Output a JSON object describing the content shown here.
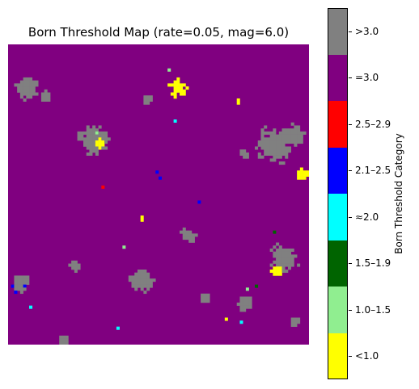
{
  "chart_data": {
    "type": "heatmap",
    "title": "Born Threshold Map (rate=0.05, mag=6.0)",
    "grid_size": [
      100,
      100
    ],
    "colorbar": {
      "label": "Born Threshold Category",
      "categories": [
        {
          "label": "<1.0",
          "color": "#ffff00"
        },
        {
          "label": "1.0–1.5",
          "color": "#90ee90"
        },
        {
          "label": "1.5–1.9",
          "color": "#006400"
        },
        {
          "label": "≈2.0",
          "color": "#00ffff"
        },
        {
          "label": "2.1–2.5",
          "color": "#0000ff"
        },
        {
          "label": "2.5–2.9",
          "color": "#ff0000"
        },
        {
          "label": "=3.0",
          "color": "#800080"
        },
        {
          "label": ">3.0",
          "color": "#808080"
        }
      ]
    },
    "background_category": "=3.0",
    "clusters": [
      {
        "category": ">3.0",
        "cx": 6,
        "cy": 14,
        "r": 4
      },
      {
        "category": ">3.0",
        "cx": 12,
        "cy": 17,
        "r": 2
      },
      {
        "category": ">3.0",
        "cx": 28,
        "cy": 31,
        "r": 5
      },
      {
        "category": ">3.0",
        "cx": 46,
        "cy": 18,
        "r": 2
      },
      {
        "category": ">3.0",
        "cx": 88,
        "cy": 33,
        "r": 6
      },
      {
        "category": ">3.0",
        "cx": 94,
        "cy": 30,
        "r": 4
      },
      {
        "category": ">3.0",
        "cx": 78,
        "cy": 36,
        "r": 2
      },
      {
        "category": ">3.0",
        "cx": 91,
        "cy": 71,
        "r": 5
      },
      {
        "category": ">3.0",
        "cx": 44,
        "cy": 78,
        "r": 4
      },
      {
        "category": ">3.0",
        "cx": 21,
        "cy": 73,
        "r": 2
      },
      {
        "category": ">3.0",
        "cx": 78,
        "cy": 86,
        "r": 3
      },
      {
        "category": ">3.0",
        "cx": 59,
        "cy": 63,
        "r": 3
      },
      {
        "category": ">3.0",
        "cx": 4,
        "cy": 79,
        "r": 3
      },
      {
        "category": ">3.0",
        "cx": 65,
        "cy": 84,
        "r": 2
      },
      {
        "category": ">3.0",
        "cx": 18,
        "cy": 98,
        "r": 2
      },
      {
        "category": ">3.0",
        "cx": 95,
        "cy": 92,
        "r": 2
      },
      {
        "category": "<1.0",
        "cx": 56,
        "cy": 14,
        "r": 3
      },
      {
        "category": "<1.0",
        "cx": 30,
        "cy": 33,
        "r": 2
      },
      {
        "category": "<1.0",
        "cx": 97,
        "cy": 43,
        "r": 2
      },
      {
        "category": "<1.0",
        "cx": 89,
        "cy": 75,
        "r": 2
      },
      {
        "category": "<1.0",
        "cx": 44,
        "cy": 57,
        "r": 1
      },
      {
        "category": "<1.0",
        "cx": 76,
        "cy": 18,
        "r": 1
      },
      {
        "category": "<1.0",
        "cx": 72,
        "cy": 91,
        "r": 1
      }
    ],
    "points": [
      {
        "category": "1.0–1.5",
        "x": 53,
        "y": 8
      },
      {
        "category": "1.0–1.5",
        "x": 29,
        "y": 29
      },
      {
        "category": "1.0–1.5",
        "x": 38,
        "y": 67
      },
      {
        "category": "1.0–1.5",
        "x": 79,
        "y": 81
      },
      {
        "category": "1.5–1.9",
        "x": 88,
        "y": 62
      },
      {
        "category": "1.5–1.9",
        "x": 82,
        "y": 80
      },
      {
        "category": "≈2.0",
        "x": 55,
        "y": 25
      },
      {
        "category": "≈2.0",
        "x": 7,
        "y": 87
      },
      {
        "category": "≈2.0",
        "x": 77,
        "y": 92
      },
      {
        "category": "≈2.0",
        "x": 36,
        "y": 94
      },
      {
        "category": "2.1–2.5",
        "x": 49,
        "y": 42
      },
      {
        "category": "2.1–2.5",
        "x": 50,
        "y": 44
      },
      {
        "category": "2.1–2.5",
        "x": 63,
        "y": 52
      },
      {
        "category": "2.1–2.5",
        "x": 1,
        "y": 80
      },
      {
        "category": "2.1–2.5",
        "x": 2,
        "y": 82
      },
      {
        "category": "2.1–2.5",
        "x": 5,
        "y": 80
      },
      {
        "category": "2.5–2.9",
        "x": 31,
        "y": 47
      }
    ]
  }
}
